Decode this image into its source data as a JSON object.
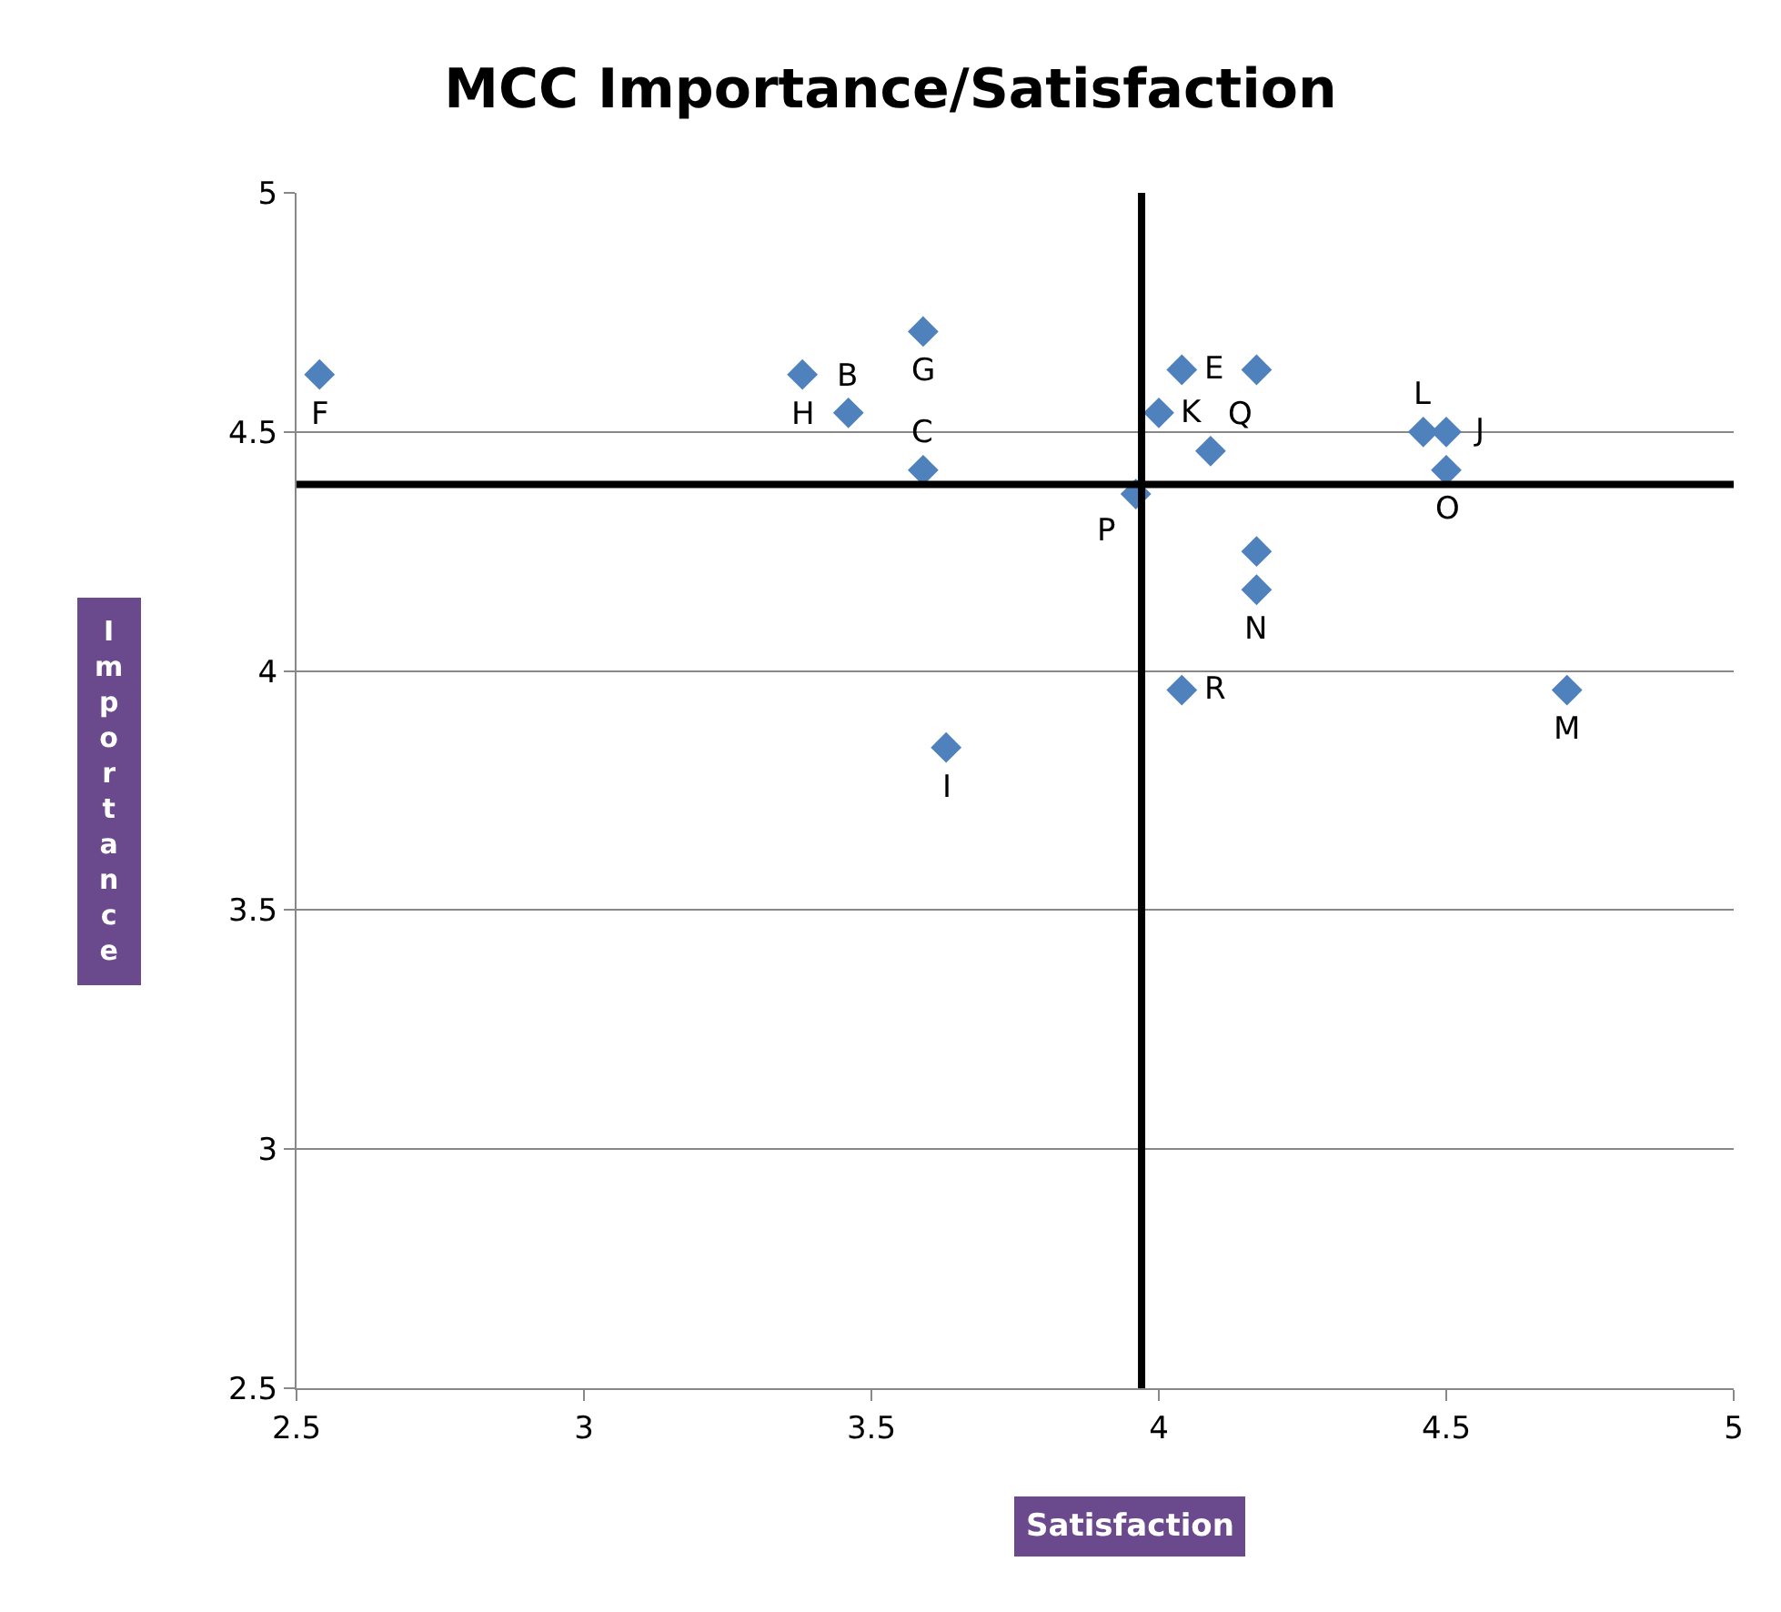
{
  "chart_data": {
    "type": "scatter",
    "title": "MCC Importance/Satisfaction",
    "xlabel": "Satisfaction",
    "ylabel": "Importance",
    "x": [
      2.54,
      3.38,
      3.46,
      3.59,
      3.59,
      3.63,
      3.96,
      4.0,
      4.04,
      4.17,
      4.09,
      4.46,
      4.5,
      4.5,
      4.17,
      4.17,
      4.04,
      4.71
    ],
    "series": [
      {
        "color": "#4f81bd",
        "values": [
          4.62,
          4.62,
          4.54,
          4.71,
          4.42,
          3.84,
          4.37,
          4.54,
          4.63,
          4.63,
          4.46,
          4.5,
          4.5,
          4.42,
          4.25,
          4.17,
          3.96,
          3.96
        ]
      }
    ],
    "annotations": [
      {
        "text": "F",
        "x": 2.54,
        "y": 4.62
      },
      {
        "text": "H",
        "x": 3.38,
        "y": 4.62
      },
      {
        "text": "B",
        "x": 3.46,
        "y": 4.54
      },
      {
        "text": "G",
        "x": 3.59,
        "y": 4.71
      },
      {
        "text": "C",
        "x": 3.59,
        "y": 4.42
      },
      {
        "text": "I",
        "x": 3.63,
        "y": 3.84
      },
      {
        "text": "P",
        "x": 3.96,
        "y": 4.37
      },
      {
        "text": "K",
        "x": 4.0,
        "y": 4.54
      },
      {
        "text": "E",
        "x": 4.04,
        "y": 4.63
      },
      {
        "text": "Q",
        "x": 4.09,
        "y": 4.46
      },
      {
        "text": "L",
        "x": 4.46,
        "y": 4.5
      },
      {
        "text": "J",
        "x": 4.5,
        "y": 4.5
      },
      {
        "text": "O",
        "x": 4.5,
        "y": 4.42
      },
      {
        "text": "N",
        "x": 4.17,
        "y": 4.17
      },
      {
        "text": "R",
        "x": 4.04,
        "y": 3.96
      },
      {
        "text": "M",
        "x": 4.71,
        "y": 3.96
      }
    ],
    "ref_lines": [
      {
        "axis": "x",
        "value": 3.97,
        "color": "#000000"
      },
      {
        "axis": "y",
        "value": 4.39,
        "color": "#000000"
      }
    ],
    "xlim": [
      2.5,
      5
    ],
    "xticks": [
      2.5,
      3,
      3.5,
      4,
      4.5,
      5
    ],
    "ylim": [
      2.5,
      5
    ],
    "yticks": [
      2.5,
      3,
      3.5,
      4,
      4.5,
      5
    ],
    "grid": "y",
    "marker": "diamond"
  }
}
